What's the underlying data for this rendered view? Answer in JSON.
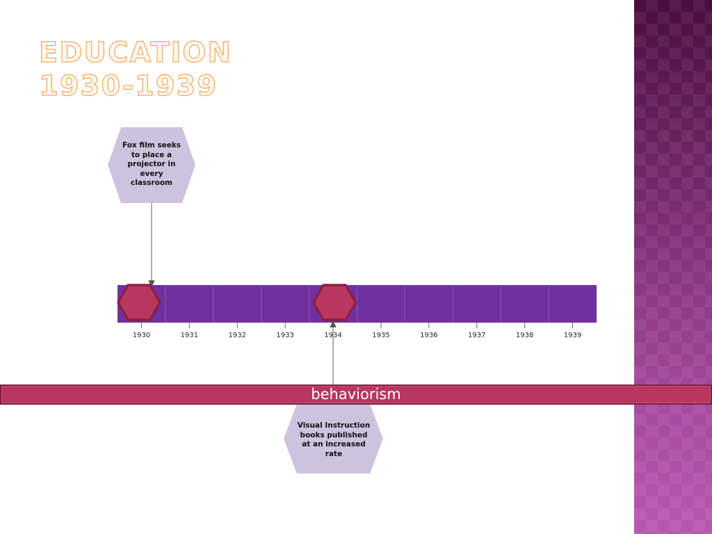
{
  "title": {
    "line1": "EDUCATION",
    "line2": "1930-1939"
  },
  "timeline": {
    "years": [
      "1930",
      "1931",
      "1932",
      "1933",
      "1934",
      "1935",
      "1936",
      "1937",
      "1938",
      "1939"
    ],
    "markers": [
      {
        "year": "1930"
      },
      {
        "year": "1934"
      }
    ]
  },
  "events": [
    {
      "year": "1930",
      "text": "Fox film seeks to place a projector in every classroom"
    },
    {
      "year": "1934",
      "text": "Visual Instruction books published at an increased rate"
    }
  ],
  "band": {
    "label": "behaviorism"
  },
  "colors": {
    "timeline_bar": "#7030a0",
    "marker_fill": "#b9375f",
    "marker_stroke": "#8a2046",
    "callout_fill": "#cec3de",
    "band_fill": "#b9375f",
    "title_outline": "#f2a85a"
  }
}
